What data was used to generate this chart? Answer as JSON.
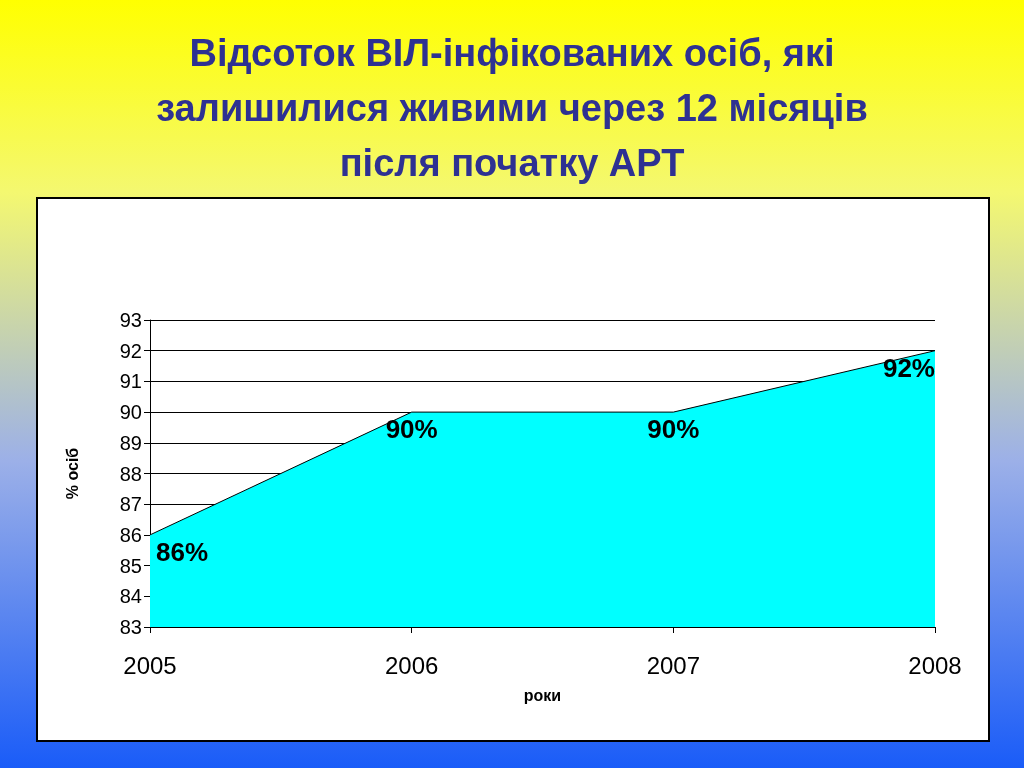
{
  "chart_data": {
    "type": "area",
    "title": "Відсоток ВІЛ-інфікованих осіб, які залишилися живими через 12 місяців після початку АРТ",
    "xlabel": "роки",
    "ylabel": "% осіб",
    "categories": [
      "2005",
      "2006",
      "2007",
      "2008"
    ],
    "series": [
      {
        "color": "#00ffff",
        "values": [
          86,
          90,
          90,
          92
        ],
        "value_labels": [
          "86%",
          "90%",
          "90%",
          "92%"
        ]
      }
    ],
    "ylim": [
      83,
      93
    ],
    "yticks": [
      83,
      84,
      85,
      86,
      87,
      88,
      89,
      90,
      91,
      92,
      93
    ],
    "grid": "y",
    "marker": "none",
    "line_style": "solid"
  }
}
